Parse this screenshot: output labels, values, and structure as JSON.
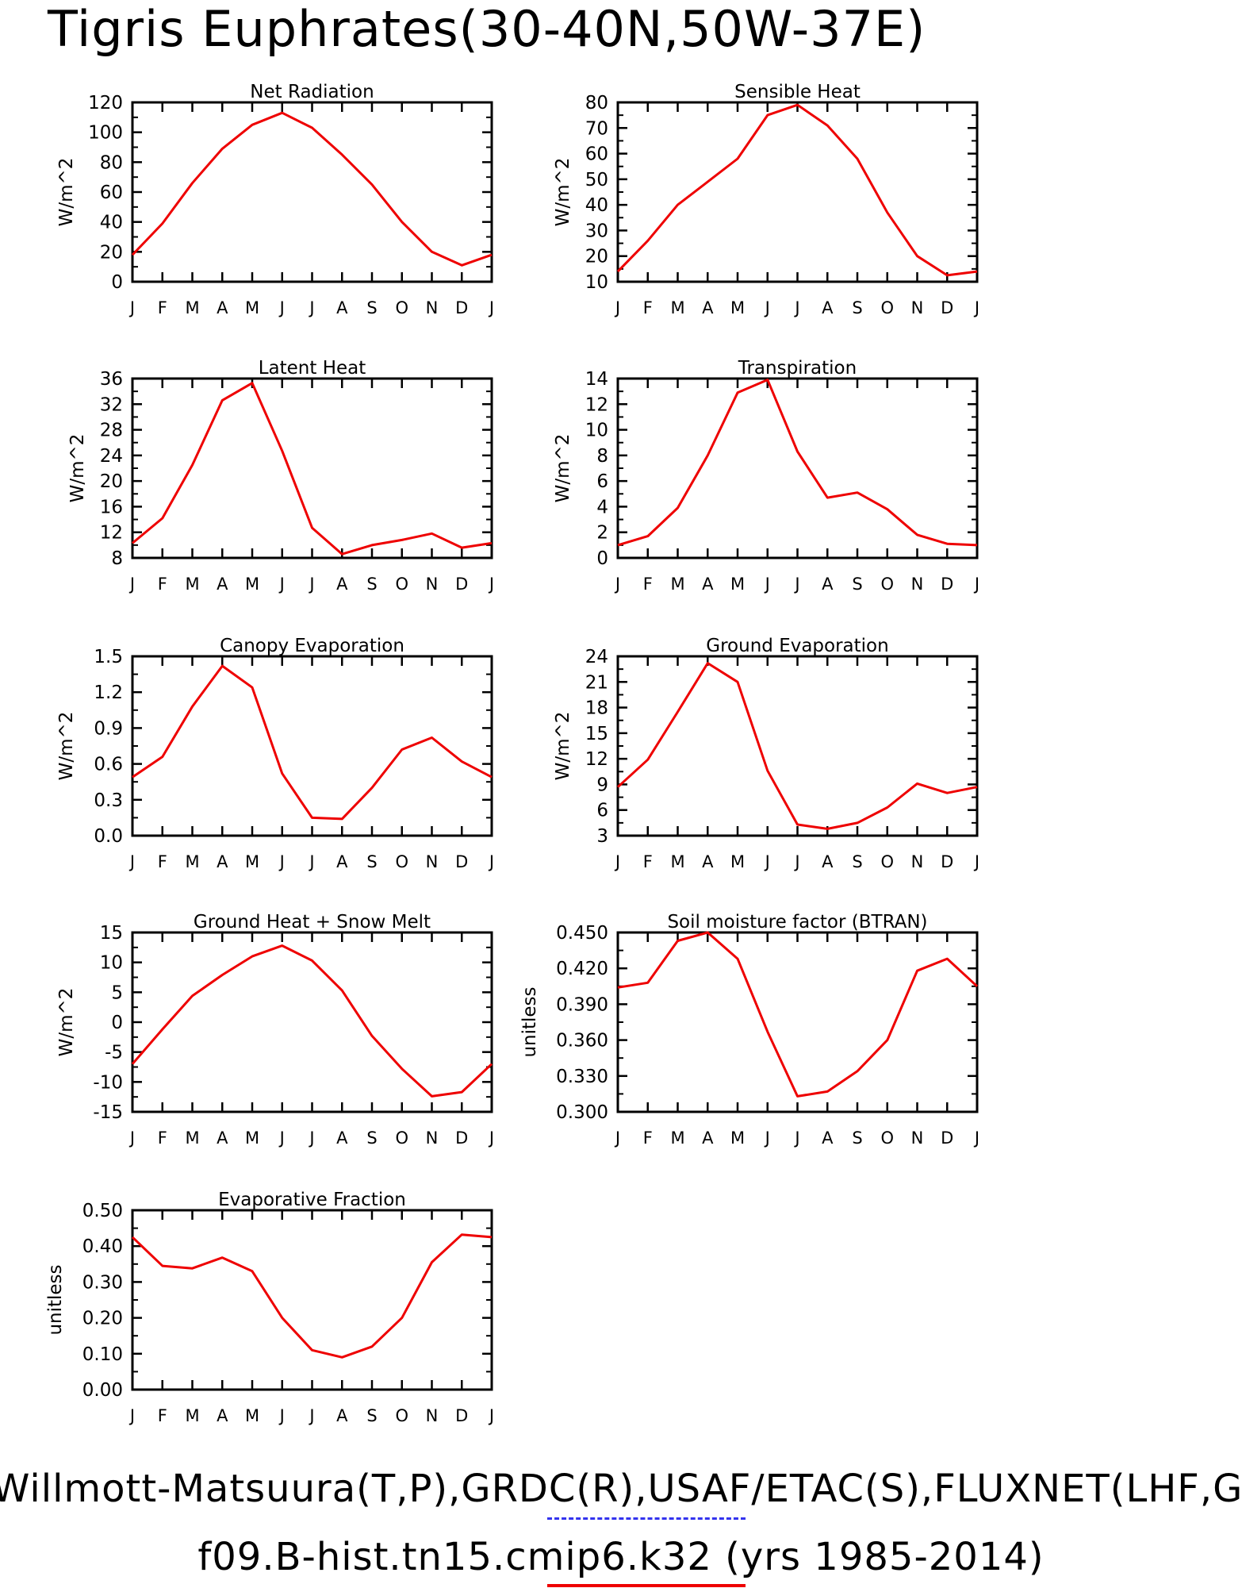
{
  "page": {
    "title": "Tigris Euphrates(30-40N,50W-37E)",
    "footer_obs": "Willmott-Matsuura(T,P),GRDC(R),USAF/ETAC(S),FLUXNET(LHF,GP",
    "footer_model": "f09.B-hist.tn15.cmip6.k32 (yrs 1985-2014)",
    "obs_color": "#3333ee",
    "model_color": "#ee0000"
  },
  "chart_data": [
    {
      "type": "line",
      "title": "Net Radiation",
      "ylabel": "W/m^2",
      "categories": [
        "J",
        "F",
        "M",
        "A",
        "M",
        "J",
        "J",
        "A",
        "S",
        "O",
        "N",
        "D",
        "J"
      ],
      "ylim": [
        0,
        120
      ],
      "yticks": [
        "0",
        "20",
        "40",
        "60",
        "80",
        "100",
        "120"
      ],
      "series": [
        {
          "values": [
            18,
            39,
            66,
            89,
            105,
            113,
            103,
            85,
            65,
            40,
            20,
            11,
            18
          ]
        }
      ]
    },
    {
      "type": "line",
      "title": "Sensible Heat",
      "ylabel": "W/m^2",
      "categories": [
        "J",
        "F",
        "M",
        "A",
        "M",
        "J",
        "J",
        "A",
        "S",
        "O",
        "N",
        "D",
        "J"
      ],
      "ylim": [
        10,
        80
      ],
      "yticks": [
        "10",
        "20",
        "30",
        "40",
        "50",
        "60",
        "70",
        "80"
      ],
      "series": [
        {
          "values": [
            14,
            26,
            40,
            49,
            58,
            75,
            79,
            71,
            58,
            37,
            20,
            12.5,
            14
          ]
        }
      ]
    },
    {
      "type": "line",
      "title": "Latent Heat",
      "ylabel": "W/m^2",
      "categories": [
        "J",
        "F",
        "M",
        "A",
        "M",
        "J",
        "J",
        "A",
        "S",
        "O",
        "N",
        "D",
        "J"
      ],
      "ylim": [
        8,
        36
      ],
      "yticks": [
        "8",
        "12",
        "16",
        "20",
        "24",
        "28",
        "32",
        "36"
      ],
      "series": [
        {
          "values": [
            10.3,
            14.2,
            22.5,
            32.6,
            35.3,
            24.7,
            12.7,
            8.6,
            10,
            10.8,
            11.8,
            9.6,
            10.3
          ]
        }
      ]
    },
    {
      "type": "line",
      "title": "Transpiration",
      "ylabel": "W/m^2",
      "categories": [
        "J",
        "F",
        "M",
        "A",
        "M",
        "J",
        "J",
        "A",
        "S",
        "O",
        "N",
        "D",
        "J"
      ],
      "ylim": [
        0,
        14
      ],
      "yticks": [
        "0",
        "2",
        "4",
        "6",
        "8",
        "10",
        "12",
        "14"
      ],
      "series": [
        {
          "values": [
            1,
            1.7,
            3.9,
            8,
            12.9,
            13.9,
            8.3,
            4.7,
            5.1,
            3.8,
            1.8,
            1.1,
            1
          ]
        }
      ]
    },
    {
      "type": "line",
      "title": "Canopy Evaporation",
      "ylabel": "W/m^2",
      "categories": [
        "J",
        "F",
        "M",
        "A",
        "M",
        "J",
        "J",
        "A",
        "S",
        "O",
        "N",
        "D",
        "J"
      ],
      "ylim": [
        0,
        1.5
      ],
      "yticks": [
        "0.0",
        "0.3",
        "0.6",
        "0.9",
        "1.2",
        "1.5"
      ],
      "series": [
        {
          "values": [
            0.49,
            0.66,
            1.08,
            1.42,
            1.24,
            0.52,
            0.15,
            0.14,
            0.4,
            0.72,
            0.82,
            0.62,
            0.49
          ]
        }
      ]
    },
    {
      "type": "line",
      "title": "Ground Evaporation",
      "ylabel": "W/m^2",
      "categories": [
        "J",
        "F",
        "M",
        "A",
        "M",
        "J",
        "J",
        "A",
        "S",
        "O",
        "N",
        "D",
        "J"
      ],
      "ylim": [
        3,
        24
      ],
      "yticks": [
        "3",
        "6",
        "9",
        "12",
        "15",
        "18",
        "21",
        "24"
      ],
      "series": [
        {
          "values": [
            8.7,
            11.9,
            17.5,
            23.2,
            21,
            10.6,
            4.3,
            3.8,
            4.5,
            6.3,
            9.1,
            8,
            8.7
          ]
        }
      ]
    },
    {
      "type": "line",
      "title": "Ground Heat + Snow Melt",
      "ylabel": "W/m^2",
      "categories": [
        "J",
        "F",
        "M",
        "A",
        "M",
        "J",
        "J",
        "A",
        "S",
        "O",
        "N",
        "D",
        "J"
      ],
      "ylim": [
        -15,
        15
      ],
      "yticks": [
        "-15",
        "-10",
        "-5",
        "0",
        "5",
        "10",
        "15"
      ],
      "series": [
        {
          "values": [
            -7,
            -1.2,
            4.4,
            7.9,
            11,
            12.8,
            10.3,
            5.3,
            -2.3,
            -7.8,
            -12.4,
            -11.7,
            -7
          ]
        }
      ]
    },
    {
      "type": "line",
      "title": "Soil moisture factor (BTRAN)",
      "ylabel": "unitless",
      "categories": [
        "J",
        "F",
        "M",
        "A",
        "M",
        "J",
        "J",
        "A",
        "S",
        "O",
        "N",
        "D",
        "J"
      ],
      "ylim": [
        0.3,
        0.45
      ],
      "yticks": [
        "0.300",
        "0.330",
        "0.360",
        "0.390",
        "0.420",
        "0.450"
      ],
      "series": [
        {
          "values": [
            0.404,
            0.408,
            0.443,
            0.45,
            0.428,
            0.367,
            0.313,
            0.317,
            0.334,
            0.36,
            0.418,
            0.428,
            0.405
          ]
        }
      ]
    },
    {
      "type": "line",
      "title": "Evaporative Fraction",
      "ylabel": "unitless",
      "categories": [
        "J",
        "F",
        "M",
        "A",
        "M",
        "J",
        "J",
        "A",
        "S",
        "O",
        "N",
        "D",
        "J"
      ],
      "ylim": [
        0,
        0.5
      ],
      "yticks": [
        "0.00",
        "0.10",
        "0.20",
        "0.30",
        "0.40",
        "0.50"
      ],
      "series": [
        {
          "values": [
            0.425,
            0.345,
            0.338,
            0.368,
            0.33,
            0.2,
            0.11,
            0.09,
            0.12,
            0.2,
            0.355,
            0.432,
            0.425
          ]
        }
      ]
    }
  ]
}
